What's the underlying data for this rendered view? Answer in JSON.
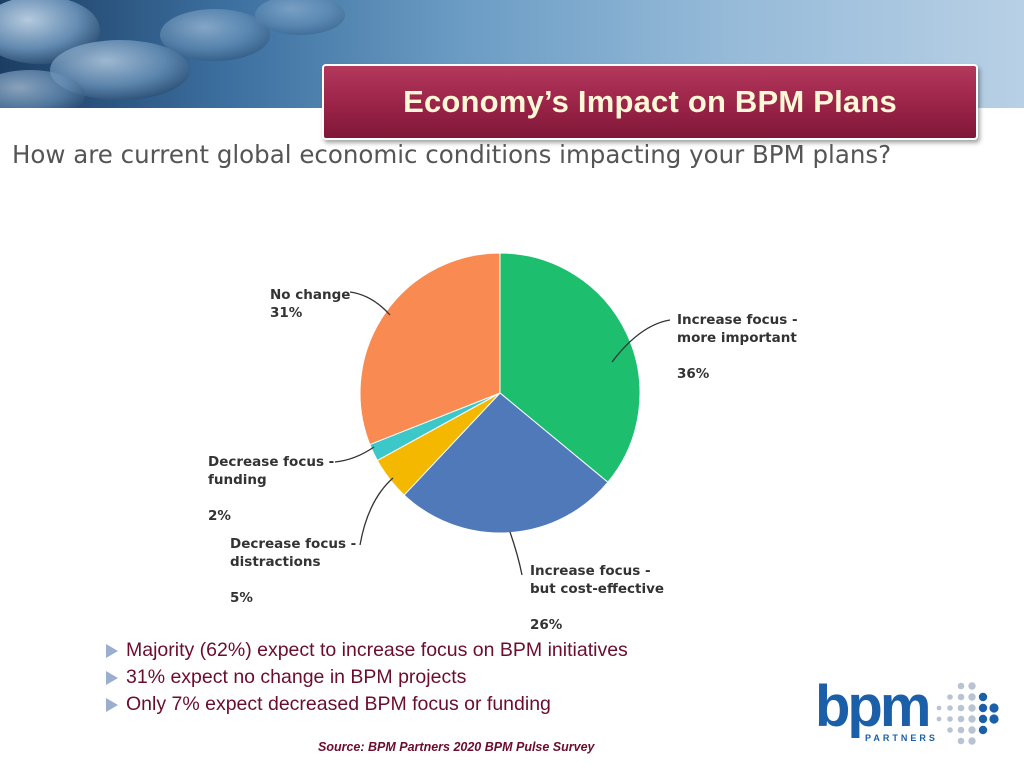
{
  "header": {
    "title": "Economy’s Impact on BPM Plans"
  },
  "question": "How are current global economic conditions impacting your BPM plans?",
  "chart_data": {
    "type": "pie",
    "slices": [
      {
        "label_line1": "Increase focus -",
        "label_line2": "more important",
        "percent_label": "36%",
        "value": 36,
        "color": "#1dbf6e"
      },
      {
        "label_line1": "Increase focus -",
        "label_line2": "but cost-effective",
        "percent_label": "26%",
        "value": 26,
        "color": "#4f79b8"
      },
      {
        "label_line1": "Decrease focus -",
        "label_line2": "distractions",
        "percent_label": "5%",
        "value": 5,
        "color": "#f5b800"
      },
      {
        "label_line1": "Decrease focus -",
        "label_line2": "funding",
        "percent_label": "2%",
        "value": 2,
        "color": "#3cc7c9"
      },
      {
        "label_line1": "No change",
        "label_line2": "",
        "percent_label": "31%",
        "value": 31,
        "color": "#f98b52"
      }
    ],
    "start": "12 o'clock",
    "direction": "clockwise",
    "legend": "none"
  },
  "bullets": [
    "Majority (62%) expect to increase focus on BPM initiatives",
    "31% expect no change in BPM projects",
    "Only 7% expect decreased BPM focus or funding"
  ],
  "source": "Source: BPM Partners 2020 BPM Pulse Survey",
  "logo": {
    "word": "bpm",
    "sub": "PARTNERS",
    "color": "#1b5fa8"
  }
}
